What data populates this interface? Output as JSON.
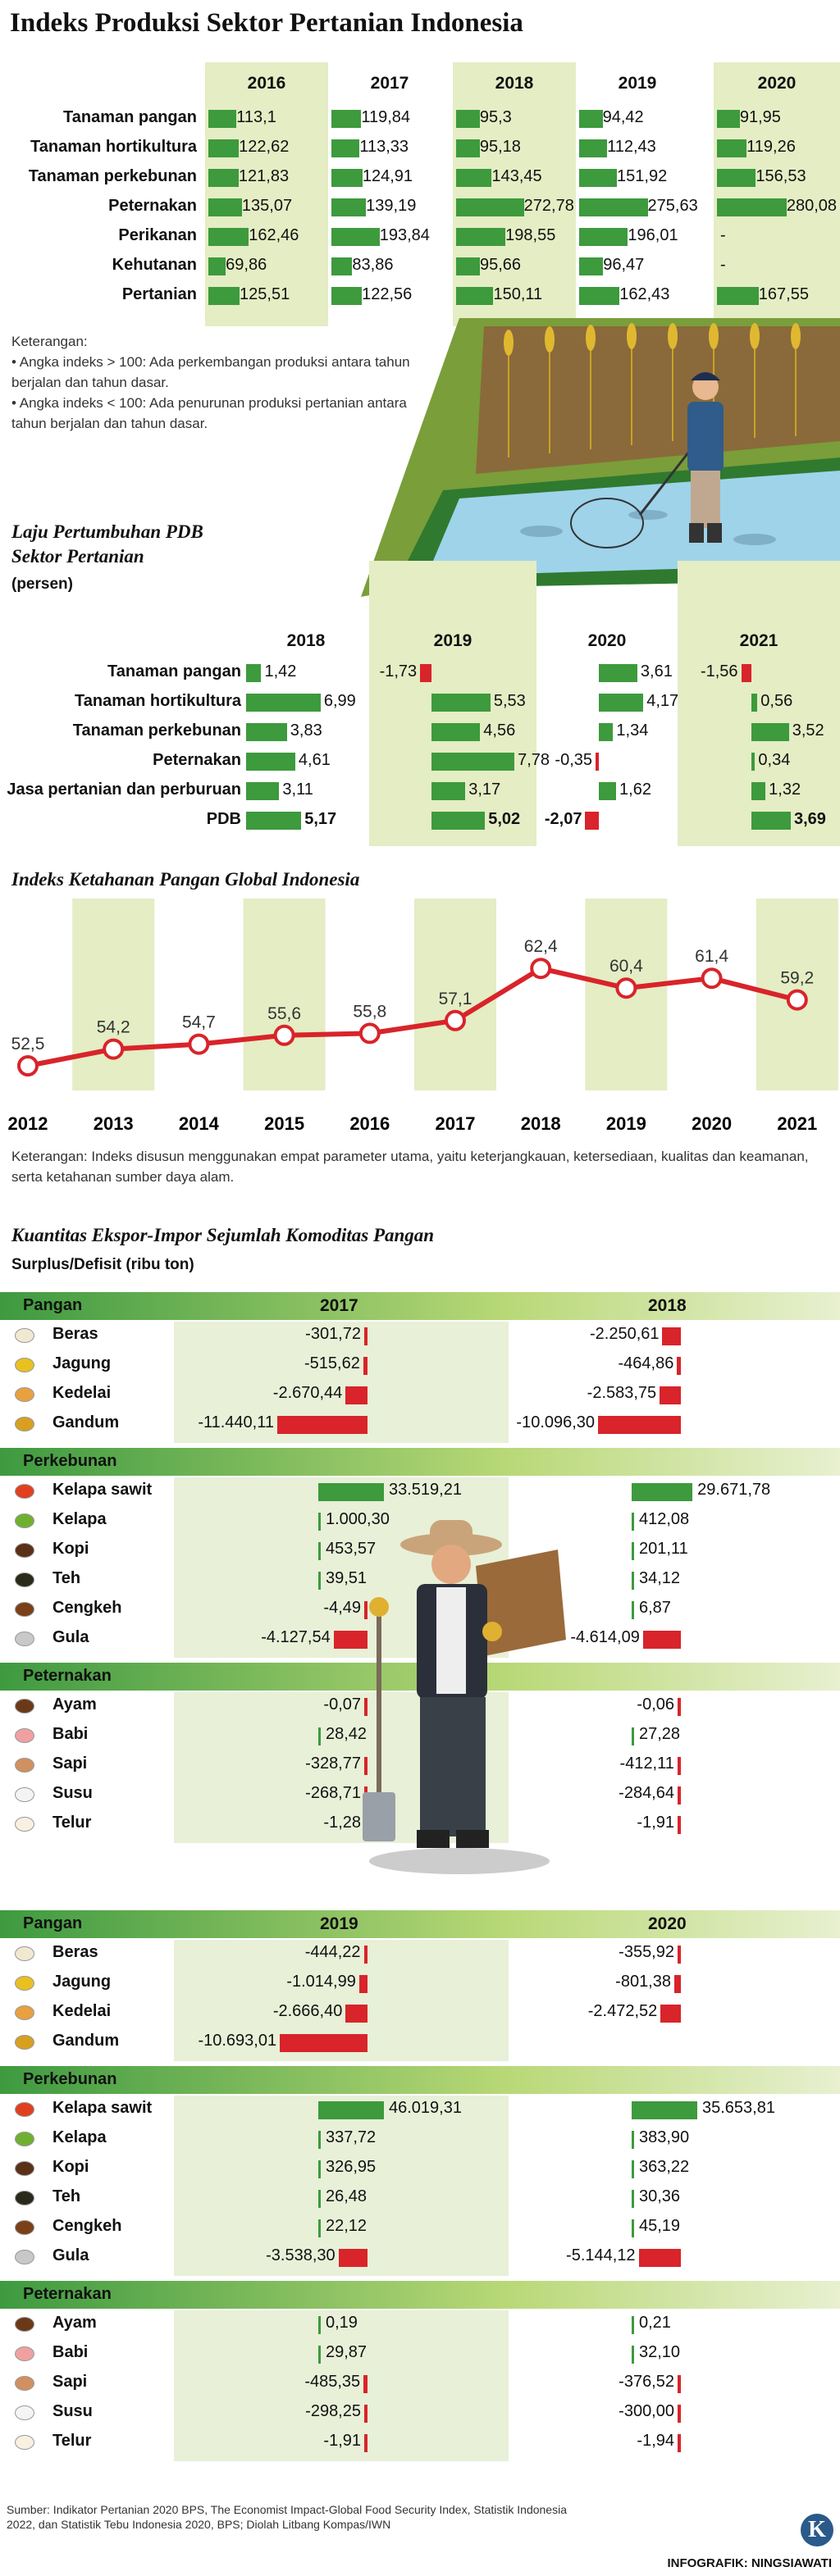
{
  "title": "Indeks Produksi Sektor Pertanian Indonesia",
  "index_table": {
    "years": [
      "2016",
      "2017",
      "2018",
      "2019",
      "2020"
    ],
    "rows": [
      {
        "label": "Tanaman pangan",
        "values": [
          "113,1",
          "119,84",
          "95,3",
          "94,42",
          "91,95"
        ]
      },
      {
        "label": "Tanaman hortikultura",
        "values": [
          "122,62",
          "113,33",
          "95,18",
          "112,43",
          "119,26"
        ]
      },
      {
        "label": "Tanaman perkebunan",
        "values": [
          "121,83",
          "124,91",
          "143,45",
          "151,92",
          "156,53"
        ]
      },
      {
        "label": "Peternakan",
        "values": [
          "135,07",
          "139,19",
          "272,78",
          "275,63",
          "280,08"
        ]
      },
      {
        "label": "Perikanan",
        "values": [
          "162,46",
          "193,84",
          "198,55",
          "196,01",
          "-"
        ]
      },
      {
        "label": "Kehutanan",
        "values": [
          "69,86",
          "83,86",
          "95,66",
          "96,47",
          "-"
        ]
      },
      {
        "label": "Pertanian",
        "values": [
          "125,51",
          "122,56",
          "150,11",
          "162,43",
          "167,55"
        ]
      }
    ]
  },
  "notes": {
    "heading": "Keterangan:",
    "items": [
      "• Angka indeks > 100: Ada perkembangan produksi antara tahun berjalan dan tahun dasar.",
      "• Angka indeks < 100: Ada penurunan produksi pertanian antara tahun berjalan dan tahun dasar."
    ]
  },
  "pdb": {
    "title1": "Laju Pertumbuhan PDB",
    "title2": "Sektor Pertanian",
    "unit": "(persen)",
    "years": [
      "2018",
      "2019",
      "2020",
      "2021"
    ],
    "rows": [
      {
        "label": "Tanaman pangan",
        "values": [
          "1,42",
          "-1,73",
          "3,61",
          "-1,56"
        ]
      },
      {
        "label": "Tanaman hortikultura",
        "values": [
          "6,99",
          "5,53",
          "4,17",
          "0,56"
        ]
      },
      {
        "label": "Tanaman perkebunan",
        "values": [
          "3,83",
          "4,56",
          "1,34",
          "3,52"
        ]
      },
      {
        "label": "Peternakan",
        "values": [
          "4,61",
          "7,78",
          "-0,35",
          "0,34"
        ]
      },
      {
        "label": "Jasa pertanian dan perburuan",
        "values": [
          "3,11",
          "3,17",
          "1,62",
          "1,32"
        ]
      },
      {
        "label": "PDB",
        "values": [
          "5,17",
          "5,02",
          "-2,07",
          "3,69"
        ]
      }
    ]
  },
  "chart_data": {
    "type": "line",
    "title": "Indeks Ketahanan Pangan Global Indonesia",
    "x": [
      "2012",
      "2013",
      "2014",
      "2015",
      "2016",
      "2017",
      "2018",
      "2019",
      "2020",
      "2021"
    ],
    "values": [
      52.5,
      54.2,
      54.7,
      55.6,
      55.8,
      57.1,
      62.4,
      60.4,
      61.4,
      59.2
    ],
    "labels": [
      "52,5",
      "54,2",
      "54,7",
      "55,6",
      "55,8",
      "57,1",
      "62,4",
      "60,4",
      "61,4",
      "59,2"
    ],
    "color": "#d8242a"
  },
  "ghi_note": "Keterangan: Indeks disusun menggunakan empat parameter utama, yaitu keterjangkauan, ketersediaan, kualitas dan keamanan, serta ketahanan sumber daya alam.",
  "trade": {
    "title": "Kuantitas Ekspor-Impor Sejumlah Komoditas Pangan",
    "unit": "Surplus/Defisit (ribu ton)",
    "sections": [
      "Pangan",
      "Perkebunan",
      "Peternakan"
    ],
    "panels": [
      {
        "years": [
          "2017",
          "2018"
        ],
        "pangan": [
          [
            "Beras",
            "-301,72",
            "-2.250,61"
          ],
          [
            "Jagung",
            "-515,62",
            "-464,86"
          ],
          [
            "Kedelai",
            "-2.670,44",
            "-2.583,75"
          ],
          [
            "Gandum",
            "-11.440,11",
            "-10.096,30"
          ]
        ],
        "perkebunan": [
          [
            "Kelapa sawit",
            "33.519,21",
            "29.671,78"
          ],
          [
            "Kelapa",
            "1.000,30",
            "412,08"
          ],
          [
            "Kopi",
            "453,57",
            "201,11"
          ],
          [
            "Teh",
            "39,51",
            "34,12"
          ],
          [
            "Cengkeh",
            "-4,49",
            "6,87"
          ],
          [
            "Gula",
            "-4.127,54",
            "-4.614,09"
          ]
        ],
        "peternakan": [
          [
            "Ayam",
            "-0,07",
            "-0,06"
          ],
          [
            "Babi",
            "28,42",
            "27,28"
          ],
          [
            "Sapi",
            "-328,77",
            "-412,11"
          ],
          [
            "Susu",
            "-268,71",
            "-284,64"
          ],
          [
            "Telur",
            "-1,28",
            "-1,91"
          ]
        ]
      },
      {
        "years": [
          "2019",
          "2020"
        ],
        "pangan": [
          [
            "Beras",
            "-444,22",
            "-355,92"
          ],
          [
            "Jagung",
            "-1.014,99",
            "-801,38"
          ],
          [
            "Kedelai",
            "-2.666,40",
            "-2.472,52"
          ],
          [
            "Gandum",
            "-10.693,01",
            ""
          ]
        ],
        "perkebunan": [
          [
            "Kelapa sawit",
            "46.019,31",
            "35.653,81"
          ],
          [
            "Kelapa",
            "337,72",
            "383,90"
          ],
          [
            "Kopi",
            "326,95",
            "363,22"
          ],
          [
            "Teh",
            "26,48",
            "30,36"
          ],
          [
            "Cengkeh",
            "22,12",
            "45,19"
          ],
          [
            "Gula",
            "-3.538,30",
            "-5.144,12"
          ]
        ],
        "peternakan": [
          [
            "Ayam",
            "0,19",
            "0,21"
          ],
          [
            "Babi",
            "29,87",
            "32,10"
          ],
          [
            "Sapi",
            "-485,35",
            "-376,52"
          ],
          [
            "Susu",
            "-298,25",
            "-300,00"
          ],
          [
            "Telur",
            "-1,91",
            "-1,94"
          ]
        ]
      }
    ]
  },
  "source": "Sumber: Indikator Pertanian 2020 BPS, The Economist Impact-Global Food Security Index, Statistik Indonesia 2022, dan Statistik Tebu Indonesia 2020, BPS; Diolah Litbang Kompas/IWN",
  "credit": "INFOGRAFIK: NINGSIAWATI",
  "logo": "K"
}
